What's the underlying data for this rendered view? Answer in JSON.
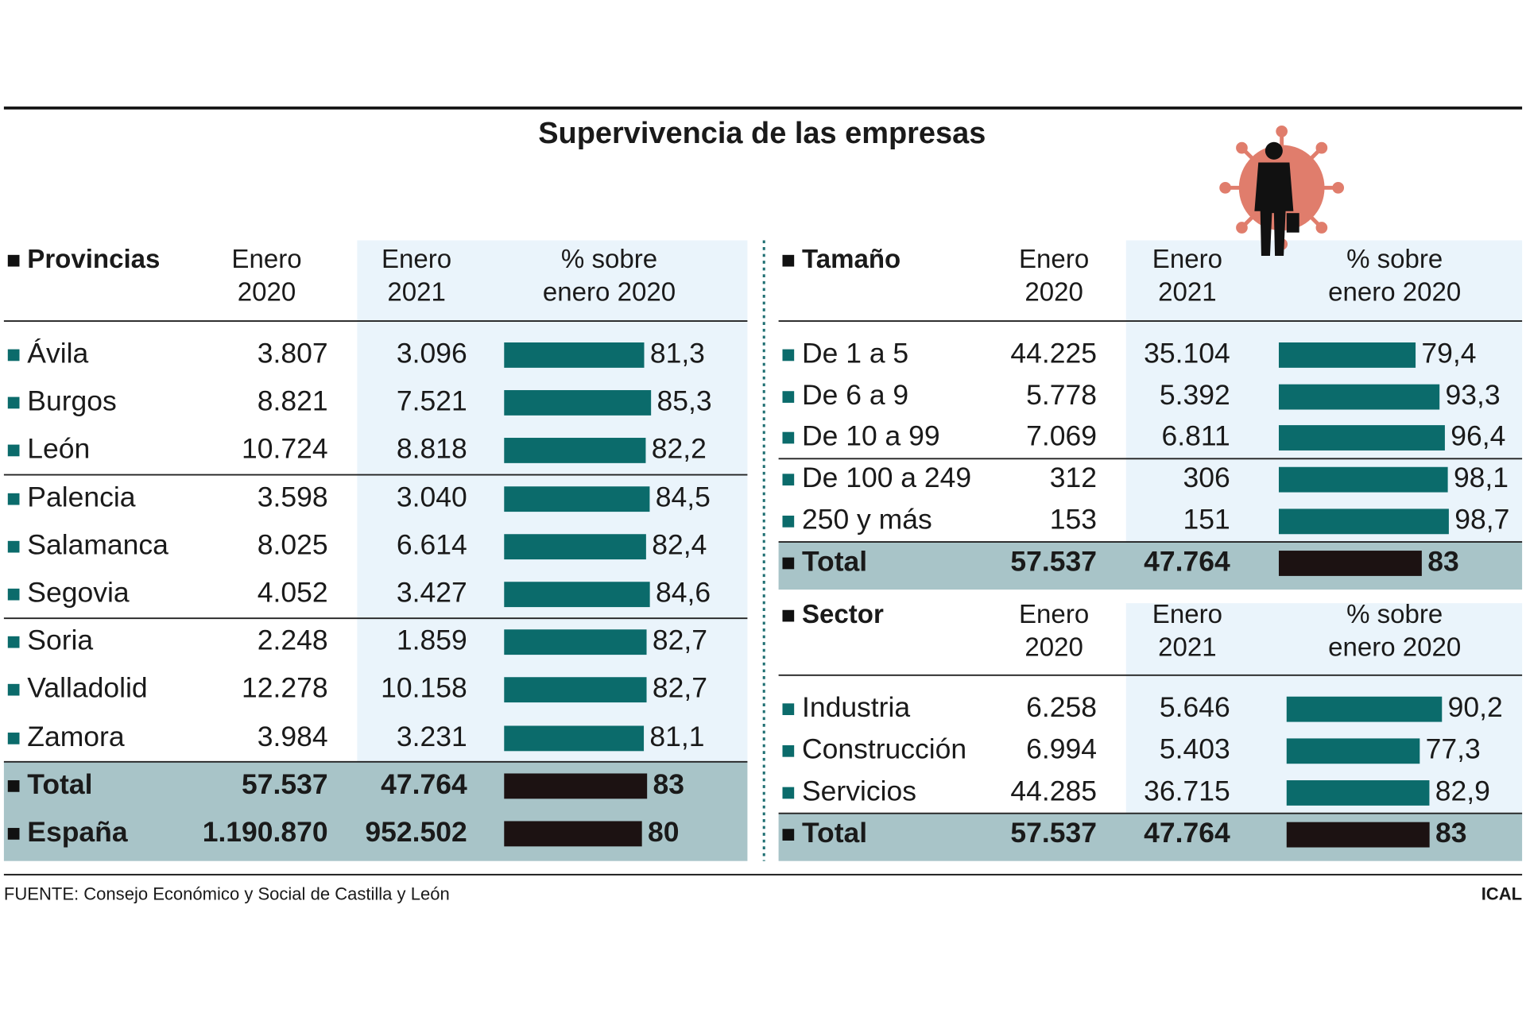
{
  "title": "Supervivencia de las empresas",
  "source": "FUENTE: Consejo Económico y Social de Castilla y León",
  "credit": "ICAL",
  "tables": [
    {
      "header": [
        "Provincias",
        [
          "Enero",
          "2020"
        ],
        [
          "Enero",
          "2021"
        ],
        [
          "% sobre",
          "enero 2020"
        ]
      ],
      "rows": [
        {
          "name": "Ávila",
          "enero_2020": "3.807",
          "enero_2021": "3.096",
          "percent": 81.3,
          "percent_label": "81,3"
        },
        {
          "name": "Burgos",
          "enero_2020": "8.821",
          "enero_2021": "7.521",
          "percent": 85.3,
          "percent_label": "85,3"
        },
        {
          "name": "León",
          "enero_2020": "10.724",
          "enero_2021": "8.818",
          "percent": 82.2,
          "percent_label": "82,2"
        },
        {
          "name": "Palencia",
          "enero_2020": "3.598",
          "enero_2021": "3.040",
          "percent": 84.5,
          "percent_label": "84,5"
        },
        {
          "name": "Salamanca",
          "enero_2020": "8.025",
          "enero_2021": "6.614",
          "percent": 82.4,
          "percent_label": "82,4"
        },
        {
          "name": "Segovia",
          "enero_2020": "4.052",
          "enero_2021": "3.427",
          "percent": 84.6,
          "percent_label": "84,6"
        },
        {
          "name": "Soria",
          "enero_2020": "2.248",
          "enero_2021": "1.859",
          "percent": 82.7,
          "percent_label": "82,7"
        },
        {
          "name": "Valladolid",
          "enero_2020": "12.278",
          "enero_2021": "10.158",
          "percent": 82.7,
          "percent_label": "82,7"
        },
        {
          "name": "Zamora",
          "enero_2020": "3.984",
          "enero_2021": "3.231",
          "percent": 81.1,
          "percent_label": "81,1"
        }
      ],
      "totals": [
        {
          "name": "Total",
          "enero_2020": "57.537",
          "enero_2021": "47.764",
          "percent": 83,
          "percent_label": "83"
        },
        {
          "name": "España",
          "enero_2020": "1.190.870",
          "enero_2021": "952.502",
          "percent": 80,
          "percent_label": "80"
        }
      ]
    },
    {
      "header": [
        "Tamaño",
        [
          "Enero",
          "2020"
        ],
        [
          "Enero",
          "2021"
        ],
        [
          "% sobre",
          "enero 2020"
        ]
      ],
      "rows": [
        {
          "name": "De 1 a 5",
          "enero_2020": "44.225",
          "enero_2021": "35.104",
          "percent": 79.4,
          "percent_label": "79,4"
        },
        {
          "name": "De 6 a 9",
          "enero_2020": "5.778",
          "enero_2021": "5.392",
          "percent": 93.3,
          "percent_label": "93,3"
        },
        {
          "name": "De 10 a 99",
          "enero_2020": "7.069",
          "enero_2021": "6.811",
          "percent": 96.4,
          "percent_label": "96,4"
        },
        {
          "name": "De 100 a 249",
          "enero_2020": "312",
          "enero_2021": "306",
          "percent": 98.1,
          "percent_label": "98,1"
        },
        {
          "name": "250 y más",
          "enero_2020": "153",
          "enero_2021": "151",
          "percent": 98.7,
          "percent_label": "98,7"
        }
      ],
      "totals": [
        {
          "name": "Total",
          "enero_2020": "57.537",
          "enero_2021": "47.764",
          "percent": 83,
          "percent_label": "83"
        }
      ]
    },
    {
      "header": [
        "Sector",
        [
          "Enero",
          "2020"
        ],
        [
          "Enero",
          "2021"
        ],
        [
          "% sobre",
          "enero 2020"
        ]
      ],
      "rows": [
        {
          "name": "Industria",
          "enero_2020": "6.258",
          "enero_2021": "5.646",
          "percent": 90.2,
          "percent_label": "90,2"
        },
        {
          "name": "Construcción",
          "enero_2020": "6.994",
          "enero_2021": "5.403",
          "percent": 77.3,
          "percent_label": "77,3"
        },
        {
          "name": "Servicios",
          "enero_2020": "44.285",
          "enero_2021": "36.715",
          "percent": 82.9,
          "percent_label": "82,9"
        }
      ],
      "totals": [
        {
          "name": "Total",
          "enero_2020": "57.537",
          "enero_2021": "47.764",
          "percent": 83,
          "percent_label": "83"
        }
      ]
    }
  ]
}
